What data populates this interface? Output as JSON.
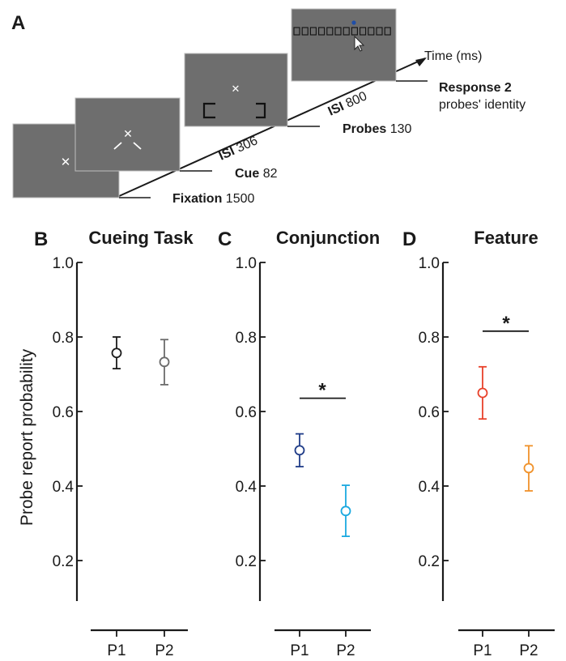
{
  "panel_a": {
    "letter": "A",
    "time_label": "Time (ms)",
    "events": [
      {
        "name": "Fixation",
        "value": "1500"
      },
      {
        "name": "Cue",
        "value": "82"
      },
      {
        "name": "ISI",
        "value": "306"
      },
      {
        "name": "Probes",
        "value": "130"
      },
      {
        "name": "ISI",
        "value": "800"
      },
      {
        "name": "Response 2",
        "value": ""
      }
    ],
    "response_sub": "probes' identity",
    "screen_color": "#6e6e6e",
    "probe_dot_color": "#1f4ea8"
  },
  "y_axis_label": "Probe report probability",
  "significance_marker": "*",
  "chart_data": [
    {
      "letter": "B",
      "type": "scatter",
      "title": "Cueing Task",
      "categories": [
        "P1",
        "P2"
      ],
      "values": [
        0.757,
        0.733
      ],
      "error_low": [
        0.715,
        0.672
      ],
      "error_high": [
        0.8,
        0.793
      ],
      "colors": [
        "#1a1a1a",
        "#6b6b6b"
      ],
      "ylim": [
        0.1,
        1.0
      ],
      "yticks": [
        0.2,
        0.4,
        0.6,
        0.8,
        1.0
      ],
      "ytick_labels": [
        "0.2",
        "0.4",
        "0.6",
        "0.8",
        "1.0"
      ],
      "significant": false
    },
    {
      "letter": "C",
      "type": "scatter",
      "title": "Conjunction",
      "categories": [
        "P1",
        "P2"
      ],
      "values": [
        0.496,
        0.333
      ],
      "error_low": [
        0.452,
        0.265
      ],
      "error_high": [
        0.54,
        0.402
      ],
      "colors": [
        "#1f3c88",
        "#1ba9e0"
      ],
      "ylim": [
        0.1,
        1.0
      ],
      "yticks": [
        0.2,
        0.4,
        0.6,
        0.8,
        1.0
      ],
      "ytick_labels": [
        "0.2",
        "0.4",
        "0.6",
        "0.8",
        "1.0"
      ],
      "significant": true
    },
    {
      "letter": "D",
      "type": "scatter",
      "title": "Feature",
      "categories": [
        "P1",
        "P2"
      ],
      "values": [
        0.65,
        0.448
      ],
      "error_low": [
        0.58,
        0.387
      ],
      "error_high": [
        0.72,
        0.508
      ],
      "colors": [
        "#e8412a",
        "#f0922b"
      ],
      "ylim": [
        0.1,
        1.0
      ],
      "yticks": [
        0.2,
        0.4,
        0.6,
        0.8,
        1.0
      ],
      "ytick_labels": [
        "0.2",
        "0.4",
        "0.6",
        "0.8",
        "1.0"
      ],
      "significant": true
    }
  ]
}
